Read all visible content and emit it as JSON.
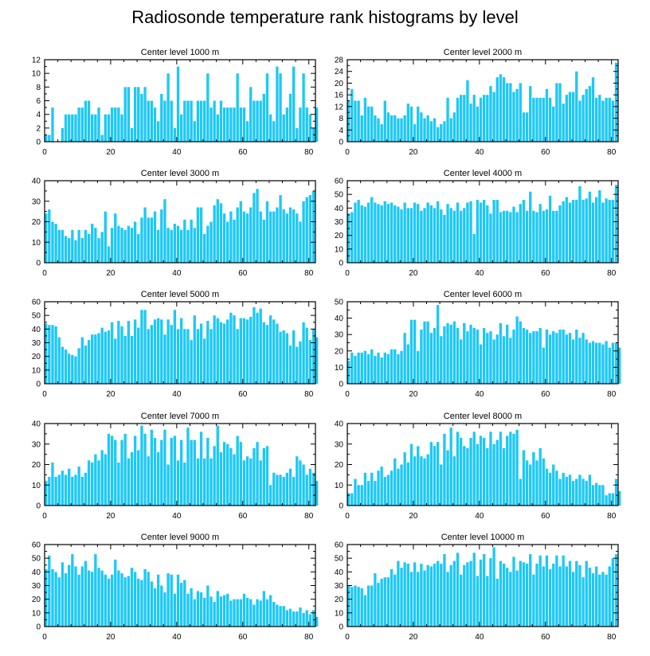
{
  "title": "Radiosonde temperature rank histograms by level",
  "bar_color": "#1ec8f5",
  "chart_data": [
    {
      "type": "bar",
      "title": "Center level 1000 m",
      "xlabel": "",
      "ylabel": "",
      "xlim": [
        0,
        82
      ],
      "ylim": [
        0,
        12
      ],
      "xticks": [
        0,
        20,
        40,
        60,
        80
      ],
      "yticks": [
        0,
        2,
        4,
        6,
        8,
        10,
        12
      ],
      "values": [
        1,
        1,
        5,
        0,
        0,
        2,
        4,
        4,
        4,
        4,
        5,
        5,
        6,
        6,
        4,
        4,
        5,
        1,
        4,
        4,
        5,
        5,
        5,
        4,
        8,
        8,
        2,
        8,
        8,
        7,
        8,
        6,
        6,
        5,
        3,
        7,
        6,
        10,
        6,
        2,
        11,
        4,
        6,
        6,
        6,
        3,
        6,
        6,
        6,
        10,
        5,
        6,
        4,
        6,
        5,
        5,
        5,
        5,
        10,
        5,
        5,
        3,
        8,
        6,
        6,
        6,
        7,
        10,
        4,
        3,
        11,
        10,
        4,
        5,
        7,
        11,
        2,
        5,
        10,
        5,
        4,
        2,
        5
      ]
    },
    {
      "type": "bar",
      "title": "Center level 2000 m",
      "xlabel": "",
      "ylabel": "",
      "xlim": [
        0,
        82
      ],
      "ylim": [
        0,
        28
      ],
      "xticks": [
        0,
        20,
        40,
        60,
        80
      ],
      "yticks": [
        0,
        4,
        8,
        12,
        16,
        20,
        24,
        28
      ],
      "values": [
        14,
        18,
        14,
        14,
        9,
        15,
        12,
        12,
        9,
        8,
        6,
        14,
        10,
        9,
        9,
        8,
        8,
        9,
        13,
        12,
        6,
        12,
        10,
        8,
        9,
        7,
        8,
        5,
        6,
        7,
        15,
        8,
        10,
        15,
        16,
        16,
        21,
        13,
        16,
        12,
        15,
        16,
        16,
        19,
        17,
        22,
        23,
        22,
        20,
        20,
        17,
        18,
        20,
        10,
        10,
        19,
        15,
        15,
        15,
        15,
        18,
        15,
        12,
        20,
        20,
        13,
        16,
        17,
        17,
        24,
        14,
        16,
        18,
        19,
        22,
        15,
        16,
        14,
        15,
        15,
        14,
        27
      ]
    },
    {
      "type": "bar",
      "title": "Center level 3000 m",
      "xlabel": "",
      "ylabel": "",
      "xlim": [
        0,
        82
      ],
      "ylim": [
        0,
        40
      ],
      "xticks": [
        0,
        20,
        40,
        60,
        80
      ],
      "yticks": [
        0,
        10,
        20,
        30,
        40
      ],
      "values": [
        24,
        26,
        20,
        19,
        16,
        16,
        13,
        12,
        16,
        11,
        16,
        12,
        16,
        14,
        19,
        17,
        12,
        15,
        25,
        8,
        17,
        24,
        18,
        17,
        16,
        18,
        17,
        20,
        14,
        22,
        27,
        22,
        22,
        25,
        16,
        26,
        31,
        17,
        16,
        19,
        18,
        16,
        21,
        16,
        21,
        17,
        27,
        27,
        14,
        18,
        20,
        28,
        31,
        29,
        24,
        20,
        25,
        21,
        27,
        30,
        25,
        24,
        27,
        34,
        36,
        25,
        21,
        30,
        25,
        25,
        27,
        33,
        26,
        24,
        27,
        26,
        24,
        20,
        30,
        32,
        33,
        35
      ]
    },
    {
      "type": "bar",
      "title": "Center level 4000 m",
      "xlabel": "",
      "ylabel": "",
      "xlim": [
        0,
        82
      ],
      "ylim": [
        0,
        60
      ],
      "xticks": [
        0,
        20,
        40,
        60,
        80
      ],
      "yticks": [
        0,
        10,
        20,
        30,
        40,
        50,
        60
      ],
      "values": [
        36,
        37,
        44,
        46,
        42,
        41,
        44,
        48,
        44,
        43,
        42,
        45,
        43,
        44,
        42,
        41,
        39,
        44,
        40,
        40,
        44,
        43,
        38,
        40,
        44,
        42,
        40,
        45,
        39,
        35,
        43,
        40,
        38,
        44,
        38,
        40,
        44,
        45,
        21,
        46,
        44,
        46,
        42,
        36,
        46,
        46,
        37,
        38,
        38,
        37,
        41,
        37,
        43,
        46,
        38,
        52,
        38,
        37,
        43,
        38,
        39,
        49,
        38,
        38,
        42,
        45,
        48,
        44,
        46,
        46,
        56,
        46,
        47,
        52,
        44,
        48,
        53,
        44,
        47,
        46,
        46,
        57
      ]
    },
    {
      "type": "bar",
      "title": "Center level 5000 m",
      "xlabel": "",
      "ylabel": "",
      "xlim": [
        0,
        82
      ],
      "ylim": [
        0,
        60
      ],
      "xticks": [
        0,
        20,
        40,
        60,
        80
      ],
      "yticks": [
        0,
        10,
        20,
        30,
        40,
        50,
        60
      ],
      "values": [
        44,
        43,
        43,
        42,
        34,
        27,
        25,
        22,
        21,
        20,
        26,
        34,
        28,
        32,
        36,
        36,
        37,
        41,
        38,
        39,
        45,
        33,
        46,
        42,
        35,
        46,
        35,
        47,
        41,
        54,
        54,
        40,
        43,
        47,
        48,
        47,
        36,
        47,
        43,
        54,
        40,
        48,
        40,
        40,
        32,
        50,
        40,
        44,
        33,
        46,
        40,
        50,
        48,
        45,
        44,
        47,
        52,
        50,
        40,
        48,
        48,
        47,
        49,
        56,
        52,
        55,
        45,
        43,
        50,
        47,
        44,
        38,
        39,
        37,
        28,
        39,
        27,
        31,
        45,
        41,
        32,
        40,
        34
      ]
    },
    {
      "type": "bar",
      "title": "Center level 6000 m",
      "xlabel": "",
      "ylabel": "",
      "xlim": [
        0,
        82
      ],
      "ylim": [
        0,
        50
      ],
      "xticks": [
        0,
        20,
        40,
        60,
        80
      ],
      "yticks": [
        0,
        10,
        20,
        30,
        40,
        50
      ],
      "values": [
        14,
        19,
        17,
        19,
        19,
        20,
        18,
        21,
        17,
        19,
        16,
        19,
        18,
        21,
        21,
        18,
        20,
        31,
        24,
        39,
        39,
        20,
        33,
        38,
        38,
        31,
        34,
        48,
        29,
        35,
        37,
        36,
        38,
        34,
        27,
        37,
        32,
        36,
        34,
        33,
        24,
        34,
        31,
        32,
        27,
        30,
        37,
        29,
        36,
        28,
        33,
        41,
        38,
        34,
        33,
        31,
        32,
        32,
        34,
        22,
        33,
        30,
        32,
        31,
        33,
        33,
        30,
        31,
        27,
        33,
        28,
        31,
        27,
        25,
        26,
        25,
        25,
        24,
        26,
        22,
        25,
        25,
        22
      ]
    },
    {
      "type": "bar",
      "title": "Center level 7000 m",
      "xlabel": "",
      "ylabel": "",
      "xlim": [
        0,
        82
      ],
      "ylim": [
        0,
        40
      ],
      "xticks": [
        0,
        20,
        40,
        60,
        80
      ],
      "yticks": [
        0,
        10,
        20,
        30,
        40
      ],
      "values": [
        12,
        14,
        21,
        14,
        15,
        17,
        15,
        18,
        14,
        15,
        19,
        14,
        16,
        22,
        21,
        25,
        22,
        27,
        25,
        35,
        34,
        32,
        21,
        32,
        35,
        23,
        26,
        34,
        27,
        39,
        35,
        24,
        37,
        33,
        26,
        32,
        37,
        20,
        33,
        34,
        22,
        32,
        21,
        38,
        32,
        32,
        23,
        36,
        23,
        33,
        23,
        29,
        39,
        26,
        31,
        30,
        28,
        25,
        34,
        31,
        22,
        24,
        23,
        28,
        31,
        22,
        28,
        29,
        10,
        16,
        15,
        15,
        14,
        16,
        18,
        14,
        24,
        22,
        20,
        15,
        18,
        16,
        12
      ]
    },
    {
      "type": "bar",
      "title": "Center level 8000 m",
      "xlabel": "",
      "ylabel": "",
      "xlim": [
        0,
        82
      ],
      "ylim": [
        0,
        40
      ],
      "xticks": [
        0,
        20,
        40,
        60,
        80
      ],
      "yticks": [
        0,
        10,
        20,
        30,
        40
      ],
      "values": [
        6,
        6,
        13,
        10,
        10,
        16,
        12,
        16,
        12,
        17,
        19,
        14,
        15,
        17,
        23,
        18,
        20,
        26,
        21,
        30,
        24,
        29,
        24,
        23,
        25,
        31,
        29,
        31,
        20,
        35,
        27,
        38,
        24,
        36,
        33,
        29,
        28,
        33,
        36,
        30,
        34,
        33,
        28,
        36,
        30,
        32,
        36,
        28,
        34,
        36,
        35,
        37,
        13,
        27,
        22,
        20,
        26,
        22,
        28,
        23,
        18,
        16,
        20,
        17,
        13,
        16,
        14,
        15,
        12,
        13,
        15,
        13,
        12,
        15,
        10,
        11,
        10,
        10,
        5,
        6,
        6,
        13,
        7
      ]
    },
    {
      "type": "bar",
      "title": "Center level 9000 m",
      "xlabel": "",
      "ylabel": "",
      "xlim": [
        0,
        82
      ],
      "ylim": [
        0,
        60
      ],
      "xticks": [
        0,
        20,
        40,
        60,
        80
      ],
      "yticks": [
        0,
        10,
        20,
        30,
        40,
        50,
        60
      ],
      "values": [
        42,
        52,
        42,
        40,
        36,
        47,
        39,
        45,
        53,
        44,
        38,
        44,
        48,
        41,
        40,
        53,
        43,
        41,
        38,
        35,
        38,
        49,
        41,
        39,
        36,
        37,
        43,
        40,
        35,
        34,
        42,
        40,
        33,
        28,
        38,
        30,
        25,
        39,
        38,
        24,
        38,
        32,
        34,
        24,
        28,
        20,
        26,
        25,
        21,
        30,
        22,
        18,
        26,
        22,
        23,
        24,
        19,
        20,
        20,
        20,
        24,
        21,
        20,
        16,
        20,
        19,
        26,
        20,
        23,
        18,
        16,
        15,
        15,
        12,
        13,
        11,
        11,
        14,
        10,
        12,
        9,
        12,
        7
      ]
    },
    {
      "type": "bar",
      "title": "Center level 10000 m",
      "xlabel": "",
      "ylabel": "",
      "xlim": [
        0,
        82
      ],
      "ylim": [
        0,
        60
      ],
      "xticks": [
        0,
        20,
        40,
        60,
        80
      ],
      "yticks": [
        0,
        10,
        20,
        30,
        40,
        50,
        60
      ],
      "values": [
        30,
        29,
        30,
        29,
        28,
        23,
        30,
        30,
        39,
        32,
        35,
        36,
        36,
        42,
        38,
        48,
        43,
        47,
        46,
        40,
        47,
        40,
        46,
        41,
        45,
        44,
        46,
        48,
        46,
        53,
        40,
        45,
        48,
        54,
        38,
        45,
        47,
        48,
        54,
        37,
        49,
        53,
        37,
        50,
        58,
        35,
        48,
        46,
        43,
        40,
        51,
        41,
        48,
        47,
        46,
        53,
        38,
        46,
        52,
        44,
        52,
        42,
        46,
        52,
        44,
        52,
        44,
        48,
        40,
        48,
        45,
        36,
        48,
        43,
        39,
        44,
        38,
        40,
        38,
        44,
        50,
        53
      ]
    }
  ]
}
